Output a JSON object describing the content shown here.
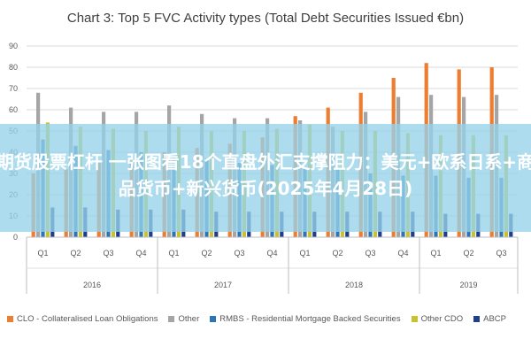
{
  "overlay_text": "期货股票杠杆 一张图看18个直盘外汇支撑阻力：美元+欧系日系+商品货币+新兴货币(2025年4月28日)",
  "chart_data": {
    "type": "bar",
    "title": "Chart 3: Top 5 FVC Activity types (Total Debt Securities Issued €bn)",
    "xlabel": "",
    "ylabel": "",
    "ylim": [
      0,
      90
    ],
    "yticks": [
      0,
      10,
      20,
      30,
      40,
      50,
      60,
      70,
      80,
      90
    ],
    "grid": true,
    "legend_position": "bottom",
    "categories": [
      "Q1",
      "Q2",
      "Q3",
      "Q4",
      "Q1",
      "Q2",
      "Q3",
      "Q4",
      "Q1",
      "Q2",
      "Q3",
      "Q4",
      "Q1",
      "Q2",
      "Q3"
    ],
    "years": [
      {
        "label": "2016",
        "count": 4
      },
      {
        "label": "2017",
        "count": 4
      },
      {
        "label": "2018",
        "count": 4
      },
      {
        "label": "2019",
        "count": 3
      }
    ],
    "series": [
      {
        "name": "CLO - Collateralised Loan Obligations",
        "color": "#ED7D31",
        "values": [
          30,
          32,
          35,
          36,
          40,
          42,
          44,
          47,
          57,
          61,
          68,
          75,
          82,
          79,
          80
        ]
      },
      {
        "name": "Other",
        "color": "#A5A5A5",
        "values": [
          68,
          61,
          59,
          59,
          62,
          58,
          56,
          56,
          55,
          52,
          59,
          66,
          67,
          66,
          67
        ]
      },
      {
        "name": "RMBS - Residential Mortgage Backed Securities",
        "color": "#2E75B6",
        "values": [
          46,
          43,
          41,
          40,
          38,
          37,
          35,
          34,
          33,
          32,
          30,
          29,
          29,
          28,
          28
        ]
      },
      {
        "name": "Other CDO",
        "color": "#C9C22E",
        "values": [
          54,
          52,
          51,
          50,
          52,
          50,
          50,
          51,
          53,
          50,
          50,
          49,
          48,
          48,
          48
        ]
      },
      {
        "name": "ABCP",
        "color": "#1F3F8C",
        "values": [
          14,
          14,
          13,
          13,
          13,
          12,
          12,
          12,
          12,
          12,
          12,
          12,
          11,
          11,
          11
        ]
      }
    ]
  }
}
